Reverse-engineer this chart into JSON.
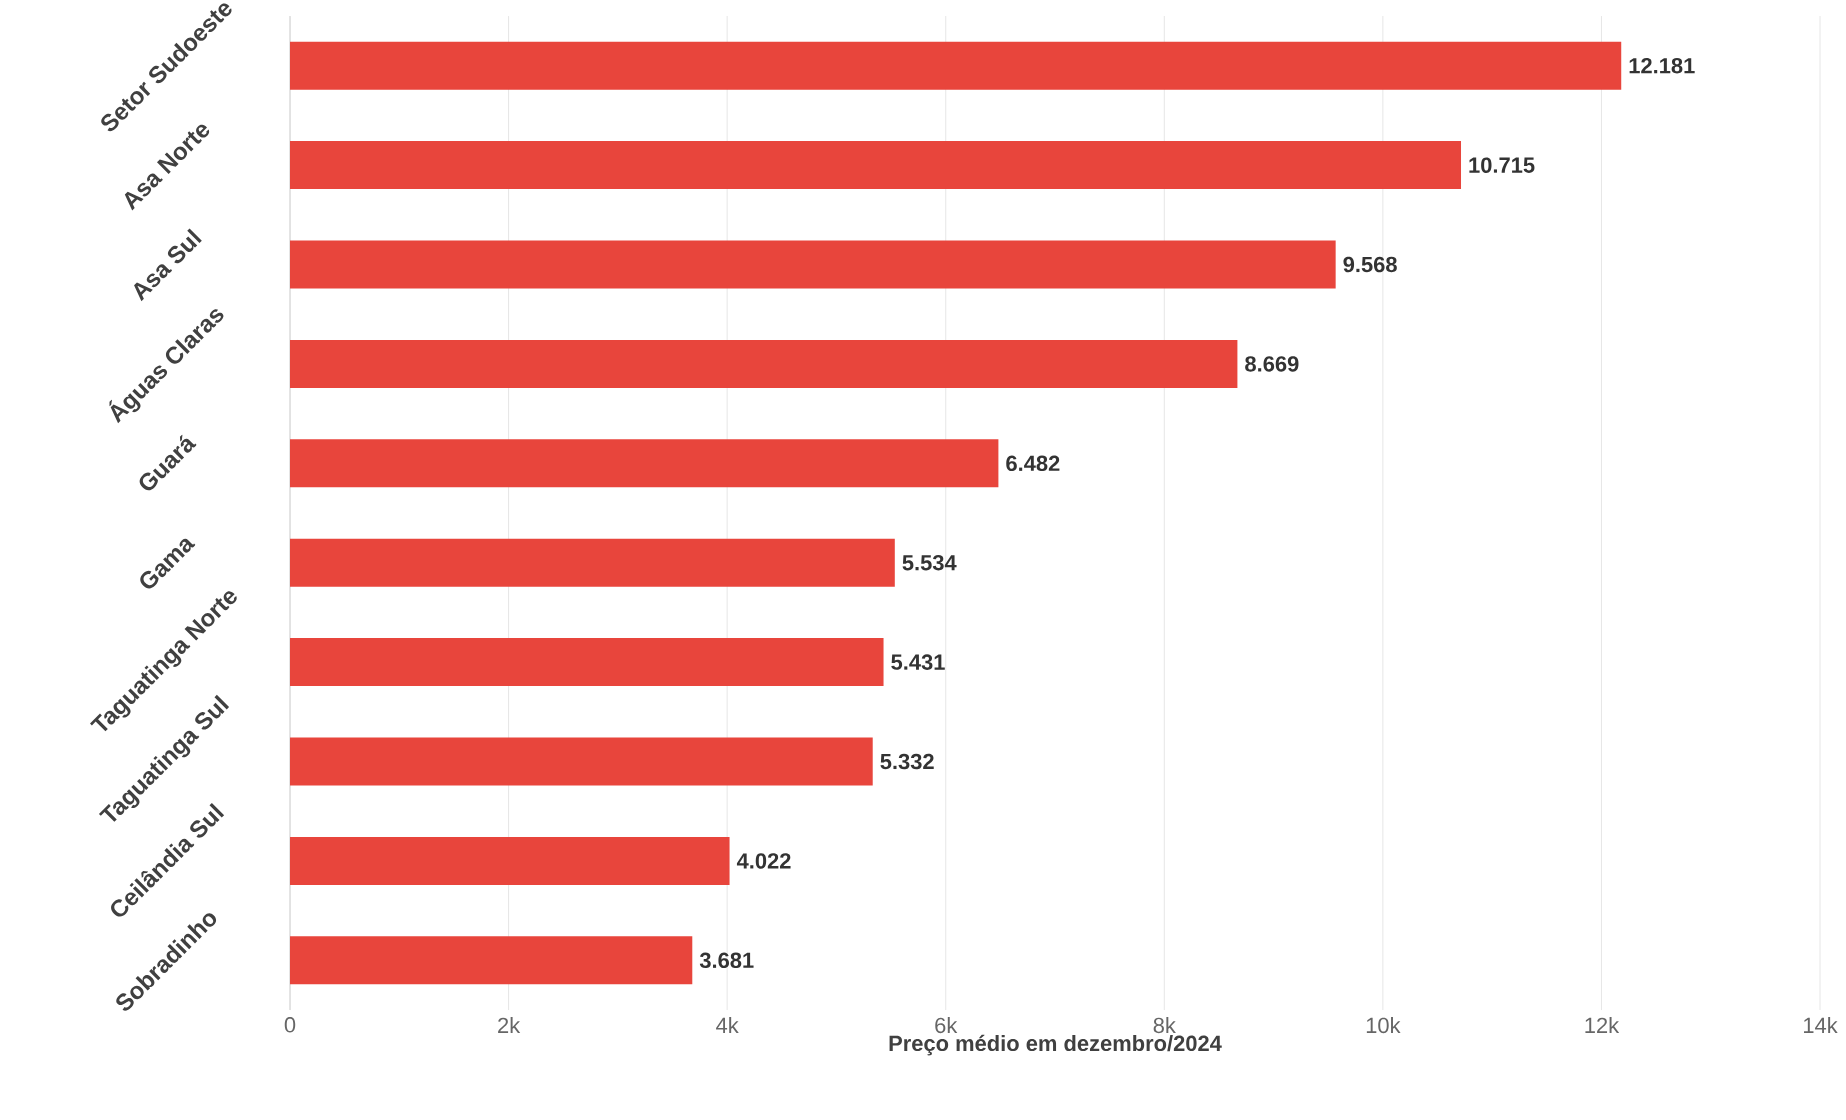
{
  "chart_data": {
    "type": "bar",
    "orientation": "horizontal",
    "xlabel": "Preço médio em dezembro/2024",
    "categories": [
      "Setor Sudoeste",
      "Asa Norte",
      "Asa Sul",
      "Águas Claras",
      "Guará",
      "Gama",
      "Taguatinga Norte",
      "Taguatinga Sul",
      "Ceilândia Sul",
      "Sobradinho"
    ],
    "values": [
      12181,
      10715,
      9568,
      8669,
      6482,
      5534,
      5431,
      5332,
      4022,
      3681
    ],
    "value_labels": [
      "12.181",
      "10.715",
      "9.568",
      "8.669",
      "6.482",
      "5.534",
      "5.431",
      "5.332",
      "4.022",
      "3.681"
    ],
    "color": "#e8453c",
    "xlim": [
      0,
      14000
    ],
    "xticks": [
      0,
      {
        "value": 2000,
        "label": "2k"
      },
      {
        "value": 4000,
        "label": "4k"
      },
      {
        "value": 6000,
        "label": "6k"
      },
      {
        "value": 8000,
        "label": "8k"
      },
      {
        "value": 10000,
        "label": "10k"
      },
      {
        "value": 12000,
        "label": "12k"
      },
      {
        "value": 14000,
        "label": "14k"
      }
    ],
    "grid": "x"
  }
}
